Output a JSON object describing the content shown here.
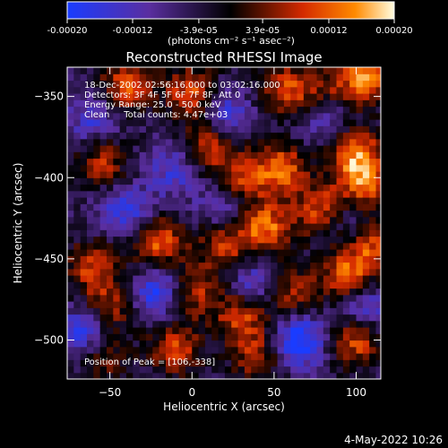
{
  "chart_data": {
    "type": "heatmap",
    "title": "Reconstructed RHESSI Image",
    "xlabel": "Heliocentric X (arcsec)",
    "ylabel": "Heliocentric Y (arcsec)",
    "xlim": [
      -76,
      115
    ],
    "ylim": [
      -524,
      -332
    ],
    "x_ticks": [
      -50,
      0,
      50,
      100
    ],
    "y_ticks": [
      -350,
      -400,
      -450,
      -500
    ],
    "colorbar": {
      "range": [
        -0.0002,
        0.0002
      ],
      "tick_values": [
        -0.0002,
        -0.00012,
        -3.9e-05,
        3.9e-05,
        0.00012,
        0.0002
      ],
      "tick_labels": [
        "-0.00020",
        "-0.00012",
        "-3.9e-05",
        "3.9e-05",
        "0.00012",
        "0.00020"
      ],
      "unit_label": "(photons cm⁻² s⁻¹ asec⁻²)"
    },
    "colors": {
      "low": "#1a3cff",
      "mid_low": "#5a2ea0",
      "zero": "#000000",
      "mid_high": "#d42a00",
      "high": "#ff8a00",
      "peak": "#fffde0"
    },
    "hotspots": [
      {
        "x": 106,
        "y": -338,
        "v": 1.0
      },
      {
        "x": 0,
        "y": -347,
        "v": 0.8
      },
      {
        "x": -40,
        "y": -343,
        "v": 0.8
      },
      {
        "x": 57,
        "y": -345,
        "v": 0.75
      },
      {
        "x": 80,
        "y": -350,
        "v": 0.7
      },
      {
        "x": -55,
        "y": -390,
        "v": 0.65
      },
      {
        "x": 10,
        "y": -380,
        "v": 0.7
      },
      {
        "x": 30,
        "y": -400,
        "v": 0.65
      },
      {
        "x": 55,
        "y": -395,
        "v": 0.85
      },
      {
        "x": 100,
        "y": -385,
        "v": 0.9
      },
      {
        "x": 105,
        "y": -405,
        "v": 0.8
      },
      {
        "x": -20,
        "y": -440,
        "v": 0.85
      },
      {
        "x": 20,
        "y": -440,
        "v": 0.75
      },
      {
        "x": 45,
        "y": -430,
        "v": 0.9
      },
      {
        "x": 80,
        "y": -420,
        "v": 0.8
      },
      {
        "x": -60,
        "y": -455,
        "v": 0.7
      },
      {
        "x": -50,
        "y": -480,
        "v": 0.6
      },
      {
        "x": 0,
        "y": -470,
        "v": 0.7
      },
      {
        "x": 30,
        "y": -485,
        "v": 0.75
      },
      {
        "x": 60,
        "y": -470,
        "v": 0.7
      },
      {
        "x": 95,
        "y": -460,
        "v": 0.85
      },
      {
        "x": 110,
        "y": -440,
        "v": 0.75
      },
      {
        "x": -10,
        "y": -505,
        "v": 0.7
      },
      {
        "x": 40,
        "y": -510,
        "v": 0.6
      },
      {
        "x": 100,
        "y": -500,
        "v": 0.8
      },
      {
        "x": -55,
        "y": -510,
        "v": 0.5
      }
    ],
    "coldspots": [
      {
        "x": 80,
        "y": -360,
        "v": -0.7
      },
      {
        "x": -40,
        "y": -420,
        "v": -0.6
      },
      {
        "x": 20,
        "y": -420,
        "v": -0.5
      },
      {
        "x": -20,
        "y": -470,
        "v": -0.8
      },
      {
        "x": -65,
        "y": -495,
        "v": -0.7
      },
      {
        "x": 65,
        "y": -500,
        "v": -0.9
      },
      {
        "x": 40,
        "y": -465,
        "v": -0.6
      },
      {
        "x": 105,
        "y": -480,
        "v": -0.6
      },
      {
        "x": -10,
        "y": -395,
        "v": -0.5
      },
      {
        "x": 95,
        "y": -425,
        "v": -0.5
      },
      {
        "x": -60,
        "y": -365,
        "v": -0.5
      },
      {
        "x": 20,
        "y": -360,
        "v": -0.6
      }
    ],
    "annotations": [
      "18-Dec-2002 02:56:16.000 to 03:02:16.000",
      "Detectors: 3F 4F 5F 6F 7F 8F, Att 0",
      "Energy Range: 25.0 - 50.0 keV",
      "Clean     Total counts: 4.47e+03"
    ],
    "peak_label": "Position of Peak = [106,-338]"
  },
  "footer": {
    "date": "4-May-2022 10:26"
  }
}
